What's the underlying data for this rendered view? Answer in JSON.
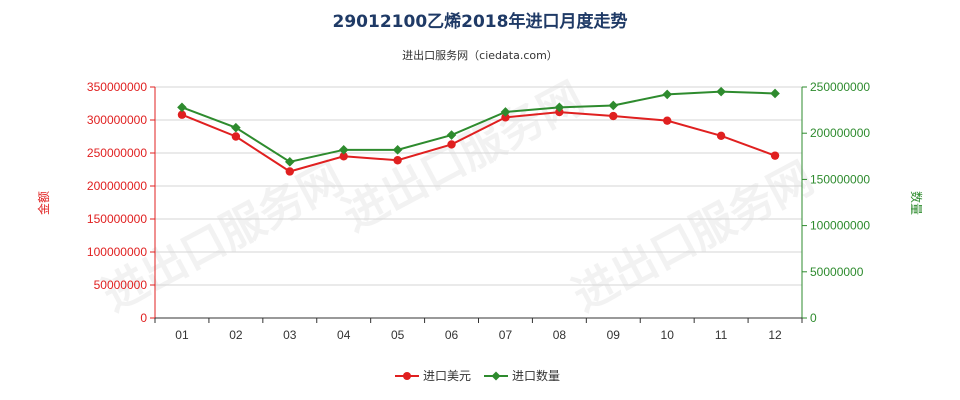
{
  "chart_data": {
    "type": "line",
    "title": "29012100乙烯2018年进口月度走势",
    "subtitle": "进出口服务网（ciedata.com）",
    "watermark": "进出口服务网",
    "categories": [
      "01",
      "02",
      "03",
      "04",
      "05",
      "06",
      "07",
      "08",
      "09",
      "10",
      "11",
      "12"
    ],
    "ylabel_left": "金额",
    "ylabel_right": "数量",
    "ylim_left": [
      0,
      350000000
    ],
    "ylim_right": [
      0,
      250000000
    ],
    "yticks_left": [
      "0",
      "50000000",
      "100000000",
      "150000000",
      "200000000",
      "250000000",
      "300000000",
      "350000000"
    ],
    "yticks_right": [
      "0",
      "50000000",
      "100000000",
      "150000000",
      "200000000",
      "250000000"
    ],
    "grid": true,
    "legend_position": "bottom-center",
    "series": [
      {
        "name": "进口美元",
        "axis": "left",
        "color": "#e02020",
        "values": [
          308000000,
          275000000,
          222000000,
          245000000,
          239000000,
          263000000,
          304000000,
          312000000,
          306000000,
          299000000,
          276000000,
          246000000
        ]
      },
      {
        "name": "进口数量",
        "axis": "right",
        "color": "#2e8b2e",
        "values": [
          228000000,
          206000000,
          169000000,
          182000000,
          182000000,
          198000000,
          223000000,
          228000000,
          230000000,
          242000000,
          245000000,
          243000000
        ]
      }
    ]
  }
}
